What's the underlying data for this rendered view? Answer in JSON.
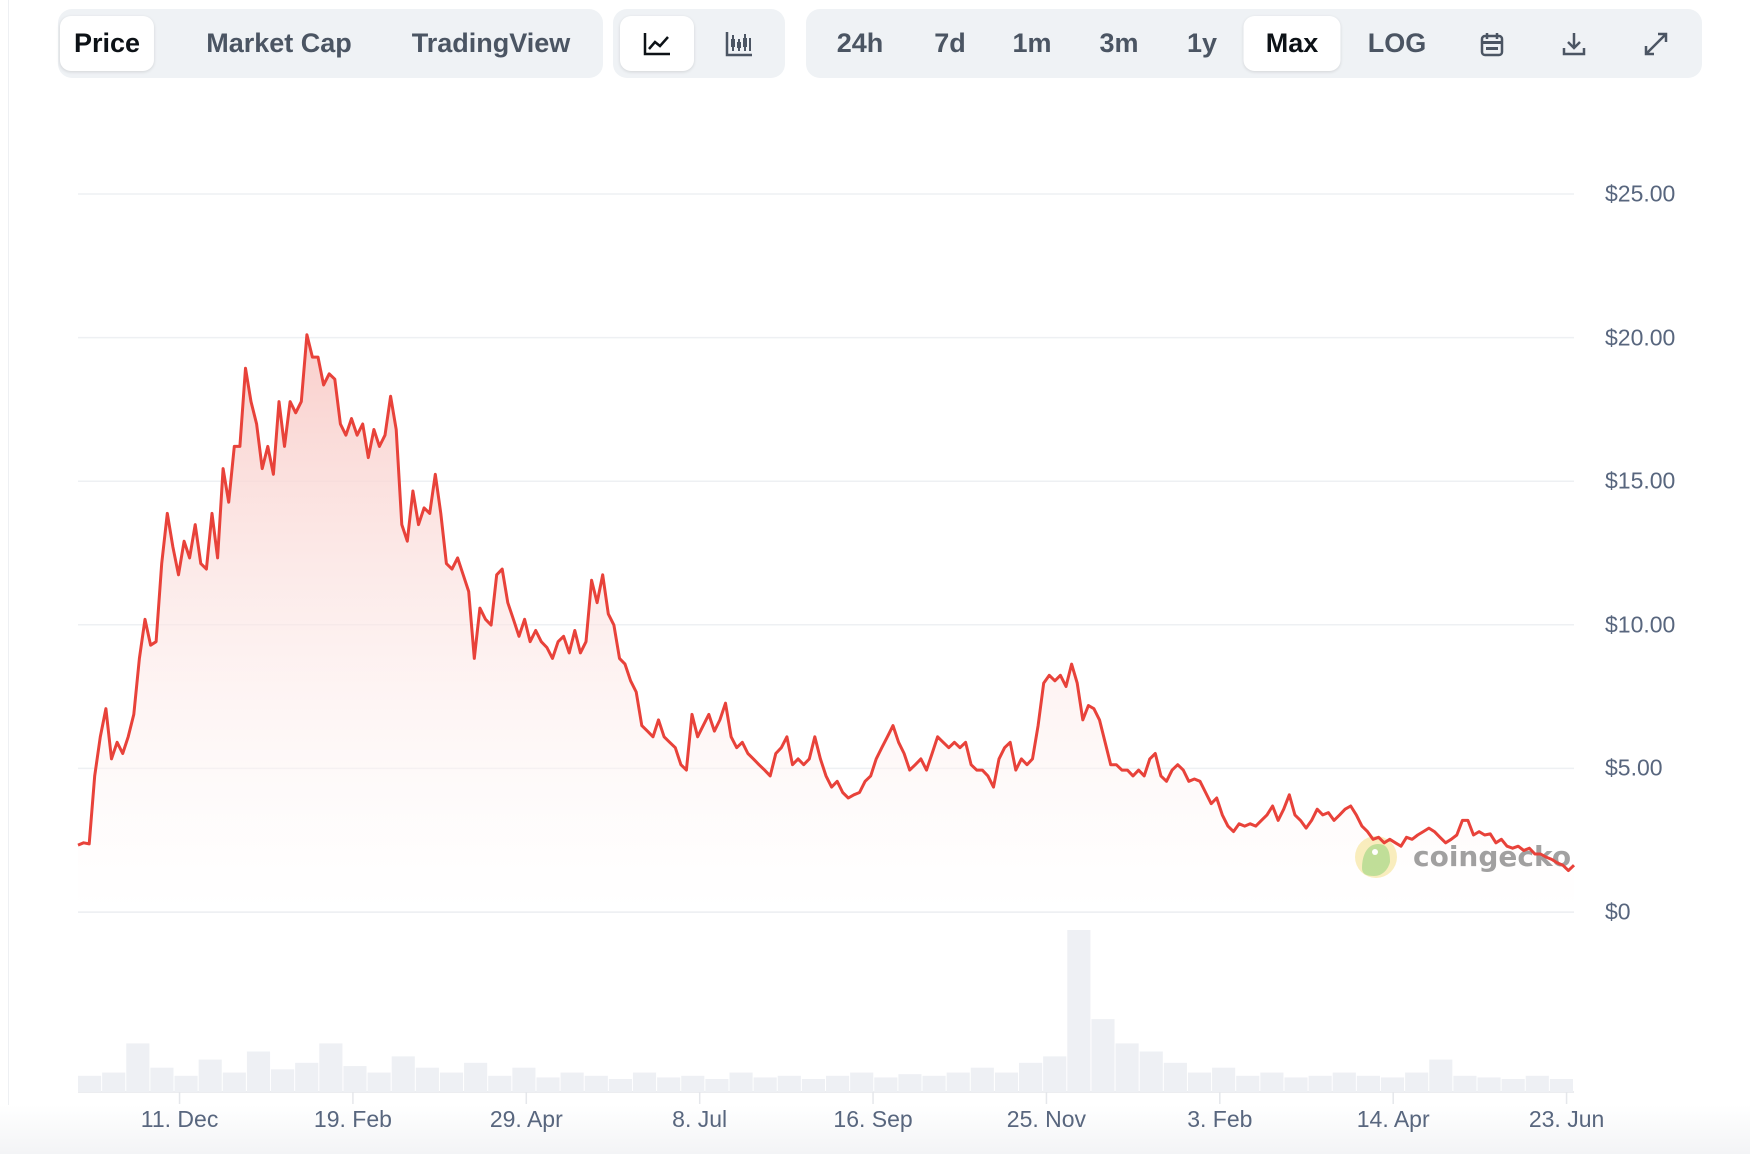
{
  "toolbar": {
    "view_tabs": [
      {
        "label": "Price",
        "active": true
      },
      {
        "label": "Market Cap",
        "active": false
      },
      {
        "label": "TradingView",
        "active": false
      }
    ],
    "chart_types": [
      {
        "icon": "line-chart-icon",
        "active": true
      },
      {
        "icon": "candlestick-chart-icon",
        "active": false
      }
    ],
    "ranges": [
      {
        "label": "24h",
        "active": false
      },
      {
        "label": "7d",
        "active": false
      },
      {
        "label": "1m",
        "active": false
      },
      {
        "label": "3m",
        "active": false
      },
      {
        "label": "1y",
        "active": false
      },
      {
        "label": "Max",
        "active": true
      },
      {
        "label": "LOG",
        "active": false
      }
    ],
    "actions": [
      {
        "icon": "calendar-icon"
      },
      {
        "icon": "download-icon"
      },
      {
        "icon": "fullscreen-icon"
      }
    ]
  },
  "watermark": "coingecko",
  "chart_data": {
    "type": "area",
    "line_color": "#e8423a",
    "fill_color": "#f8c9c5",
    "ylim": [
      0,
      25
    ],
    "y_ticks": [
      "$0",
      "$5.00",
      "$10.00",
      "$15.00",
      "$20.00",
      "$25.00"
    ],
    "y_tick_values": [
      0,
      5,
      10,
      15,
      20,
      25
    ],
    "x_ticks": [
      "11. Dec",
      "19. Feb",
      "29. Apr",
      "8. Jul",
      "16. Sep",
      "25. Nov",
      "3. Feb",
      "14. Apr",
      "23. Jun"
    ],
    "x_tick_dates": [
      "2023-12-11",
      "2024-02-19",
      "2024-04-29",
      "2024-07-08",
      "2024-09-16",
      "2024-11-25",
      "2025-02-03",
      "2025-04-14",
      "2025-06-23"
    ],
    "x_range": [
      "2023-10-31",
      "2025-06-26"
    ],
    "grid": true,
    "price": [
      2.33,
      2.41,
      2.37,
      4.74,
      6.1,
      7.08,
      5.33,
      5.91,
      5.52,
      6.1,
      6.88,
      8.83,
      10.19,
      9.29,
      9.41,
      12.13,
      13.88,
      12.71,
      11.74,
      12.91,
      12.33,
      13.49,
      12.13,
      11.94,
      13.88,
      12.33,
      15.44,
      14.27,
      16.21,
      16.21,
      18.93,
      17.77,
      16.99,
      15.44,
      16.21,
      15.24,
      17.77,
      16.21,
      17.77,
      17.38,
      17.77,
      20.1,
      19.32,
      19.32,
      18.35,
      18.74,
      18.55,
      16.99,
      16.6,
      17.18,
      16.6,
      16.99,
      15.82,
      16.8,
      16.21,
      16.6,
      17.96,
      16.8,
      13.49,
      12.91,
      14.66,
      13.49,
      14.07,
      13.88,
      15.24,
      13.88,
      12.13,
      11.94,
      12.33,
      11.74,
      11.16,
      8.83,
      10.58,
      10.19,
      9.99,
      11.74,
      11.94,
      10.77,
      10.19,
      9.6,
      10.19,
      9.41,
      9.8,
      9.41,
      9.21,
      8.83,
      9.41,
      9.6,
      9.02,
      9.8,
      9.02,
      9.41,
      11.55,
      10.77,
      11.74,
      10.38,
      9.99,
      8.83,
      8.63,
      8.05,
      7.66,
      6.49,
      6.3,
      6.1,
      6.69,
      6.1,
      5.91,
      5.72,
      5.13,
      4.94,
      6.88,
      6.1,
      6.49,
      6.88,
      6.3,
      6.69,
      7.27,
      6.1,
      5.72,
      5.91,
      5.52,
      5.33,
      5.13,
      4.94,
      4.74,
      5.52,
      5.72,
      6.1,
      5.13,
      5.33,
      5.13,
      5.33,
      6.1,
      5.33,
      4.74,
      4.35,
      4.55,
      4.16,
      3.97,
      4.08,
      4.16,
      4.55,
      4.74,
      5.33,
      5.72,
      6.1,
      6.49,
      5.91,
      5.52,
      4.94,
      5.13,
      5.33,
      4.94,
      5.52,
      6.1,
      5.91,
      5.72,
      5.91,
      5.72,
      5.91,
      5.13,
      4.94,
      4.94,
      4.74,
      4.35,
      5.33,
      5.72,
      5.91,
      4.94,
      5.33,
      5.13,
      5.33,
      6.49,
      7.97,
      8.24,
      8.05,
      8.24,
      7.85,
      8.63,
      7.97,
      6.69,
      7.19,
      7.08,
      6.69,
      5.91,
      5.13,
      5.13,
      4.94,
      4.94,
      4.74,
      4.94,
      4.74,
      5.33,
      5.52,
      4.74,
      4.55,
      4.94,
      5.13,
      4.94,
      4.55,
      4.63,
      4.55,
      4.16,
      3.77,
      3.97,
      3.38,
      2.99,
      2.8,
      3.07,
      2.99,
      3.07,
      2.99,
      3.19,
      3.38,
      3.69,
      3.19,
      3.58,
      4.08,
      3.38,
      3.19,
      2.92,
      3.19,
      3.58,
      3.38,
      3.46,
      3.19,
      3.38,
      3.58,
      3.69,
      3.38,
      2.99,
      2.8,
      2.53,
      2.6,
      2.41,
      2.53,
      2.41,
      2.29,
      2.6,
      2.53,
      2.68,
      2.8,
      2.92,
      2.8,
      2.6,
      2.41,
      2.53,
      2.68,
      3.19,
      3.19,
      2.68,
      2.8,
      2.68,
      2.72,
      2.41,
      2.53,
      2.29,
      2.22,
      2.29,
      2.14,
      2.22,
      2.02,
      2.02,
      1.91,
      1.83,
      1.71,
      1.63,
      1.44,
      1.63
    ],
    "volume_relative": [
      0.1,
      0.12,
      0.3,
      0.15,
      0.1,
      0.2,
      0.12,
      0.25,
      0.14,
      0.18,
      0.3,
      0.16,
      0.12,
      0.22,
      0.15,
      0.12,
      0.18,
      0.1,
      0.15,
      0.09,
      0.12,
      0.1,
      0.08,
      0.12,
      0.09,
      0.1,
      0.08,
      0.12,
      0.09,
      0.1,
      0.08,
      0.1,
      0.12,
      0.09,
      0.11,
      0.1,
      0.12,
      0.15,
      0.12,
      0.18,
      0.22,
      1.0,
      0.45,
      0.3,
      0.25,
      0.18,
      0.12,
      0.15,
      0.1,
      0.12,
      0.09,
      0.1,
      0.12,
      0.1,
      0.09,
      0.12,
      0.2,
      0.1,
      0.09,
      0.08,
      0.1,
      0.08
    ]
  }
}
